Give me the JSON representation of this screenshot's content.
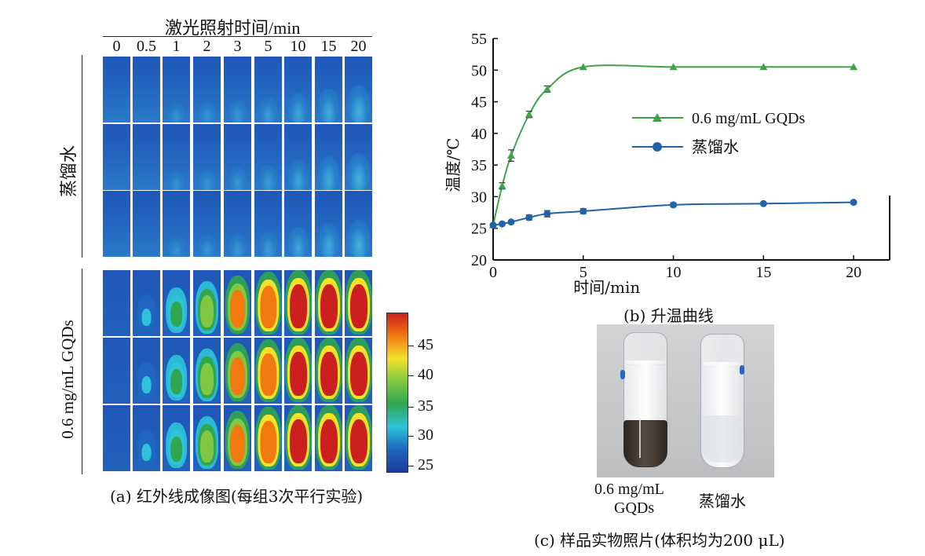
{
  "panel_a": {
    "header": "激光照射时间/min",
    "time_labels": [
      "0",
      "0.5",
      "1",
      "2",
      "3",
      "5",
      "10",
      "15",
      "20"
    ],
    "group_water": "蒸馏水",
    "group_gqds": "0.6 mg/mL GQDs",
    "colorbar_ticks": [
      "45",
      "40",
      "35",
      "30",
      "25"
    ],
    "colorbar_colors": [
      "#cc1f1f",
      "#f07a10",
      "#f5e12a",
      "#7ec843",
      "#2fa650",
      "#2ec3d8",
      "#1f67c0",
      "#1a3a9e"
    ],
    "caption": "(a) 红外线成像图(每组3次平行实验)",
    "water_intensity": [
      0.02,
      0.05,
      0.08,
      0.12,
      0.15,
      0.2,
      0.3,
      0.38,
      0.45
    ],
    "gqds_intensity": [
      0.02,
      0.35,
      0.55,
      0.7,
      0.85,
      0.95,
      1.0,
      1.0,
      1.0
    ]
  },
  "panel_b": {
    "caption": "(b) 升温曲线",
    "chart_data": {
      "type": "line",
      "xlabel": "时间/min",
      "ylabel": "温度/℃",
      "xlim": [
        0,
        22
      ],
      "ylim": [
        20,
        55
      ],
      "xticks": [
        0,
        5,
        10,
        15,
        20
      ],
      "yticks": [
        20,
        25,
        30,
        35,
        40,
        45,
        50,
        55
      ],
      "legend_position": "right-center",
      "series": [
        {
          "name": "0.6 mg/mL GQDs",
          "marker": "triangle",
          "color": "#3fa34d",
          "x": [
            0,
            0.5,
            1,
            2,
            3,
            5,
            10,
            15,
            20
          ],
          "y": [
            25.5,
            31.7,
            36.5,
            43,
            47,
            50.5,
            50.5,
            50.5,
            50.5
          ],
          "err": [
            0,
            0.5,
            0.9,
            0.5,
            0.5,
            0,
            0,
            0,
            0
          ]
        },
        {
          "name": "蒸馏水",
          "marker": "circle",
          "color": "#2163a8",
          "x": [
            0,
            0.5,
            1,
            2,
            3,
            5,
            10,
            15,
            20
          ],
          "y": [
            25.5,
            25.7,
            26.0,
            26.7,
            27.3,
            27.7,
            28.7,
            28.9,
            29.1
          ],
          "err": [
            0,
            0,
            0,
            0.4,
            0.5,
            0.4,
            0.3,
            0,
            0
          ]
        }
      ]
    }
  },
  "panel_c": {
    "label_left_1": "0.6 mg/mL",
    "label_left_2": "GQDs",
    "label_right": "蒸馏水",
    "caption": "(c) 样品实物照片(体积均为200 μL)"
  }
}
